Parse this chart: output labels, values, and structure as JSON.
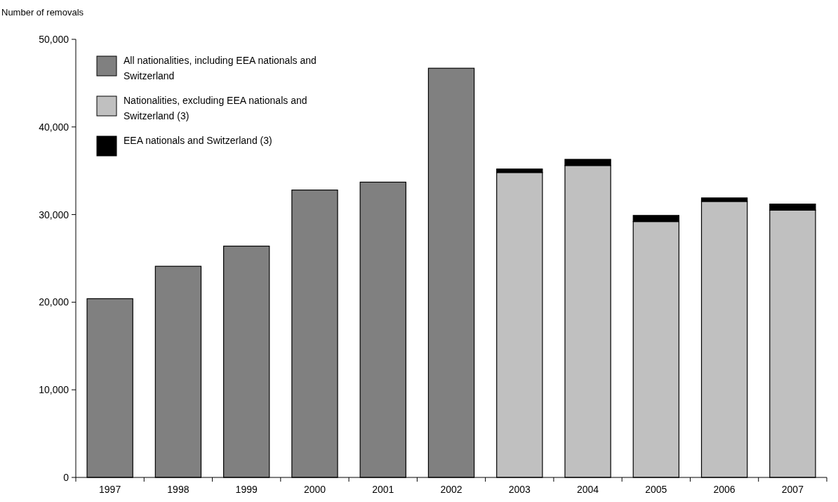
{
  "chart_data": {
    "type": "bar",
    "ylabel": "Number of removals",
    "categories": [
      "1997",
      "1998",
      "1999",
      "2000",
      "2001",
      "2002",
      "2003",
      "2004",
      "2005",
      "2006",
      "2007"
    ],
    "stacked": true,
    "series": [
      {
        "name": "All nationalities, including EEA nationals and Switzerland",
        "color": "#808080",
        "values": [
          20400,
          24100,
          26400,
          32800,
          33700,
          46700,
          null,
          null,
          null,
          null,
          null
        ]
      },
      {
        "name": "Nationalities, excluding EEA nationals and Switzerland (3)",
        "color": "#c0c0c0",
        "values": [
          null,
          null,
          null,
          null,
          null,
          null,
          34800,
          35600,
          29200,
          31500,
          30500
        ]
      },
      {
        "name": "EEA nationals and Switzerland (3)",
        "color": "#000000",
        "values": [
          null,
          null,
          null,
          null,
          null,
          null,
          400,
          700,
          700,
          400,
          700
        ]
      }
    ],
    "ylim": [
      0,
      50000
    ],
    "yticks": [
      {
        "value": 0,
        "label": "0"
      },
      {
        "value": 10000,
        "label": "10,000"
      },
      {
        "value": 20000,
        "label": "20,000"
      },
      {
        "value": 30000,
        "label": "30,000"
      },
      {
        "value": 40000,
        "label": "40,000"
      },
      {
        "value": 50000,
        "label": "50,000"
      }
    ],
    "grid": false,
    "legend": "top left"
  }
}
